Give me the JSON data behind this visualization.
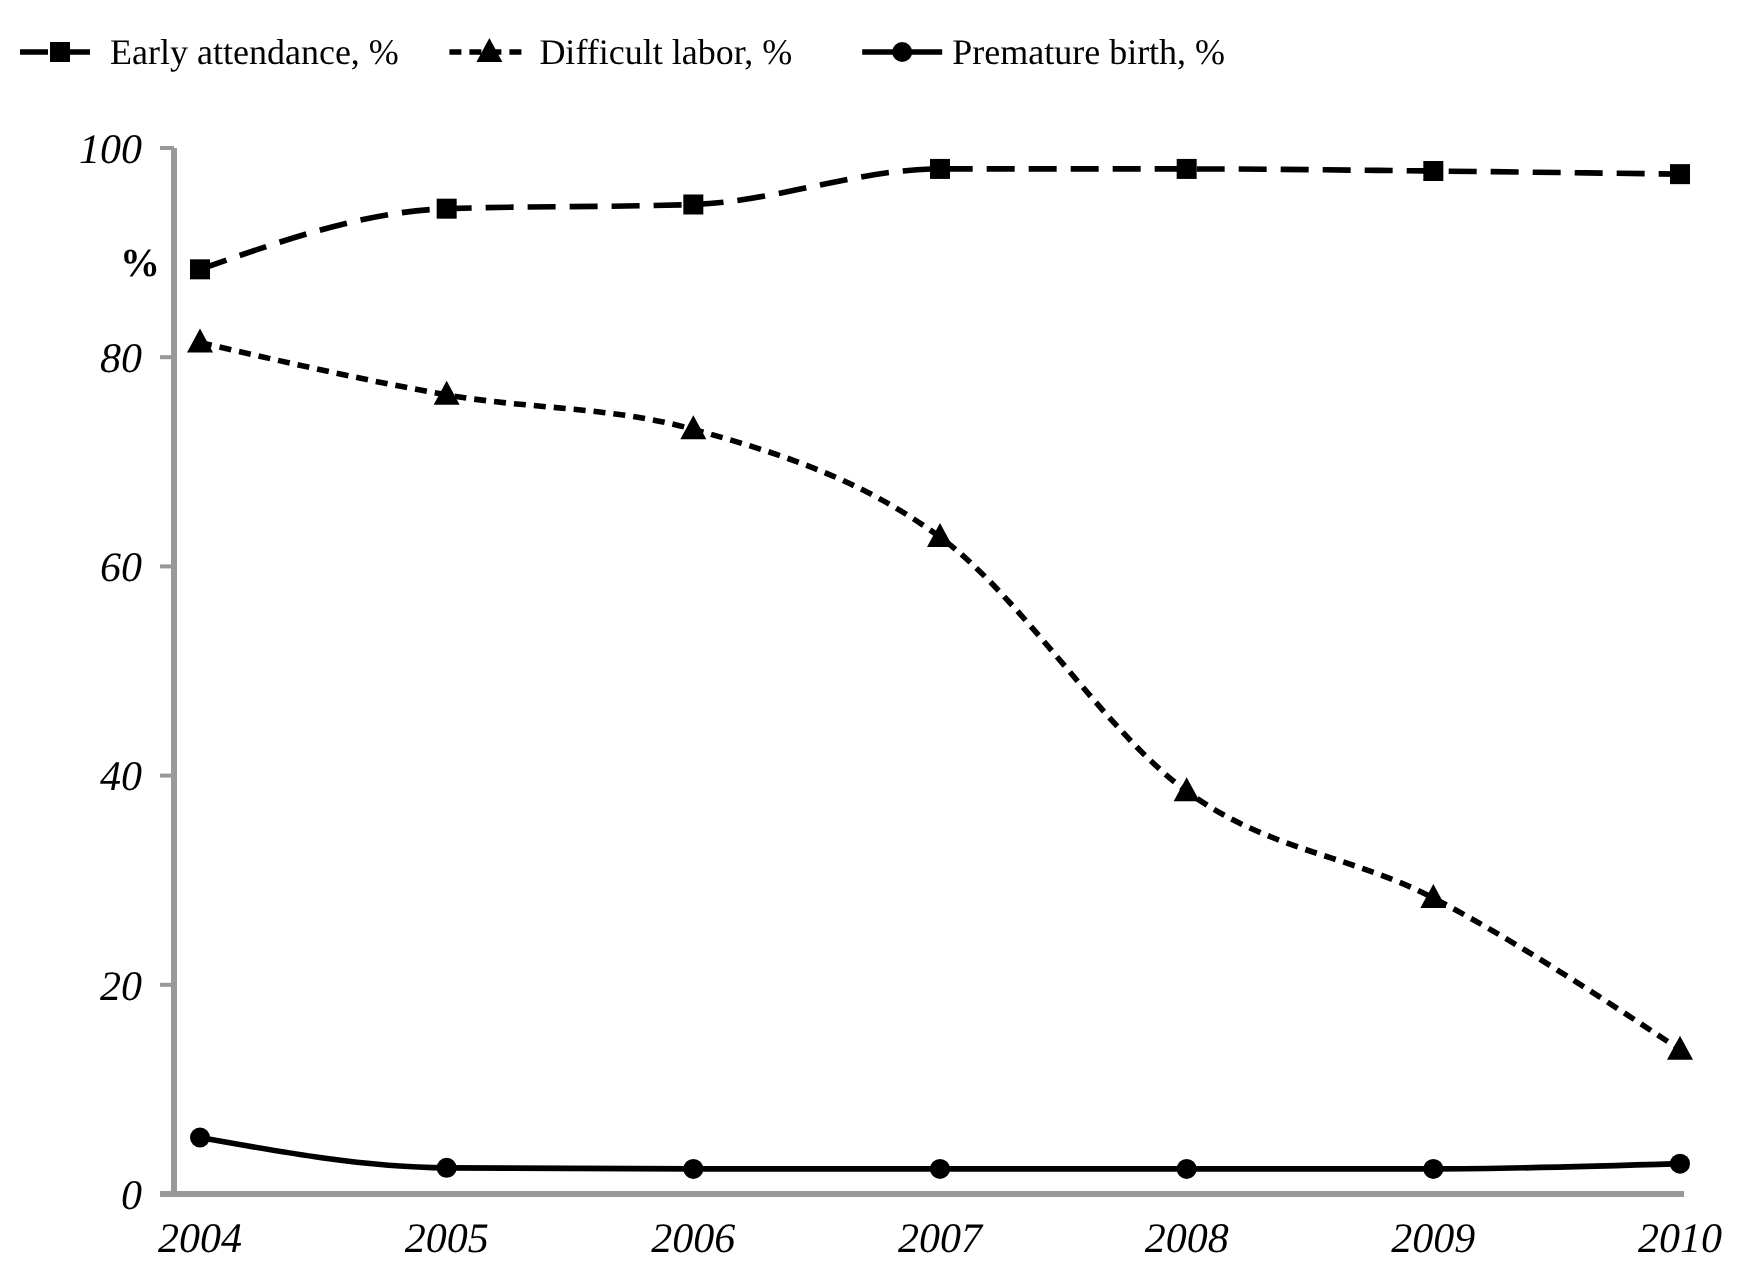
{
  "chart_data": {
    "type": "line",
    "ylabel": "%",
    "categories": [
      "2004",
      "2005",
      "2006",
      "2007",
      "2008",
      "2009",
      "2010"
    ],
    "ylim": [
      0,
      100
    ],
    "yticks": [
      0,
      20,
      40,
      60,
      80,
      100
    ],
    "grid": false,
    "legend": "top",
    "series": [
      {
        "name": "Early attendance, %",
        "color": "#000000",
        "marker": "square",
        "line_style": "dashed",
        "values": [
          88.4,
          94.2,
          94.6,
          98.0,
          98.0,
          97.8,
          97.5
        ]
      },
      {
        "name": "Difficult labor, %",
        "color": "#000000",
        "marker": "triangle",
        "line_style": "dotted",
        "values": [
          81.4,
          76.4,
          73.1,
          62.8,
          38.5,
          28.3,
          13.8
        ]
      },
      {
        "name": "Premature birth, %",
        "color": "#000000",
        "marker": "circle",
        "line_style": "solid",
        "values": [
          5.4,
          2.5,
          2.4,
          2.4,
          2.4,
          2.4,
          2.9
        ]
      }
    ]
  }
}
